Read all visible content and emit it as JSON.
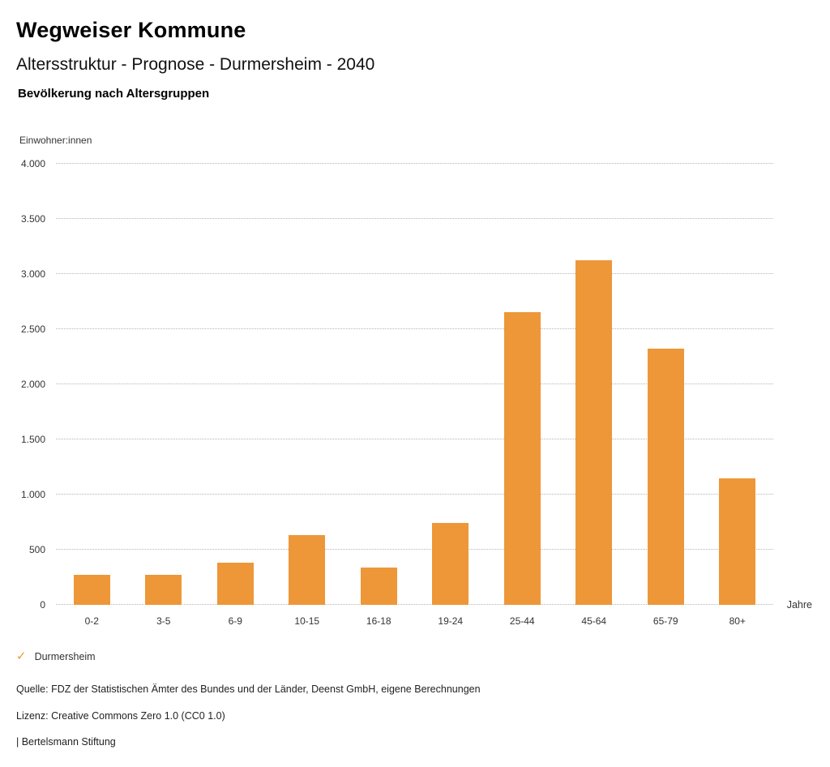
{
  "header": {
    "title": "Wegweiser Kommune",
    "subtitle": "Altersstruktur - Prognose - Durmersheim - 2040",
    "section_title": "Bevölkerung nach Altersgruppen"
  },
  "chart_data": {
    "type": "bar",
    "title": "Bevölkerung nach Altersgruppen",
    "categories": [
      "0-2",
      "3-5",
      "6-9",
      "10-15",
      "16-18",
      "19-24",
      "25-44",
      "45-64",
      "65-79",
      "80+"
    ],
    "series": [
      {
        "name": "Durmersheim",
        "values": [
          275,
          275,
          385,
          635,
          340,
          740,
          2655,
          3125,
          2325,
          1150
        ]
      }
    ],
    "xlabel": "Jahre",
    "ylabel": "Einwohner:innen",
    "ylim": [
      0,
      4000
    ],
    "ytick_values": [
      0,
      500,
      1000,
      1500,
      2000,
      2500,
      3000,
      3500,
      4000
    ],
    "ytick_labels": [
      "0",
      "500",
      "1.000",
      "1.500",
      "2.000",
      "2.500",
      "3.000",
      "3.500",
      "4.000"
    ],
    "grid": "horizontal-dotted",
    "legend_position": "bottom-left",
    "bar_color": "#ED9738"
  },
  "legend": {
    "check_icon": "✓",
    "label": "Durmersheim",
    "check_color": "#ED9738"
  },
  "footer": {
    "source": "Quelle: FDZ der Statistischen Ämter des Bundes und der Länder, Deenst GmbH, eigene Berechnungen",
    "license": "Lizenz: Creative Commons Zero 1.0 (CC0 1.0)",
    "attribution": "| Bertelsmann Stiftung"
  }
}
